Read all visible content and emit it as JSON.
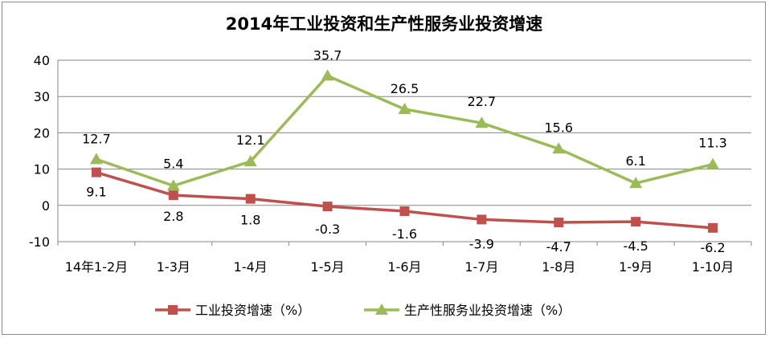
{
  "chart_data": {
    "type": "line",
    "title": "2014年工业投资和生产性服务业投资增速",
    "categories": [
      "14年1-2月",
      "1-3月",
      "1-4月",
      "1-5月",
      "1-6月",
      "1-7月",
      "1-8月",
      "1-9月",
      "1-10月"
    ],
    "ylim": [
      -10,
      40
    ],
    "yticks": [
      -10,
      0,
      10,
      20,
      30,
      40
    ],
    "grid": true,
    "legend_position": "bottom",
    "series": [
      {
        "name": "工业投资增速（%）",
        "values": [
          9.1,
          2.8,
          1.8,
          -0.3,
          -1.6,
          -3.9,
          -4.7,
          -4.5,
          -6.2
        ],
        "labels": [
          "9.1",
          "2.8",
          "1.8",
          "-0.3",
          "-1.6",
          "-3.9",
          "-4.7",
          "-4.5",
          "-6.2"
        ],
        "color": "#c0504d",
        "marker": "square"
      },
      {
        "name": "生产性服务业投资增速（%）",
        "values": [
          12.7,
          5.4,
          12.1,
          35.7,
          26.5,
          22.7,
          15.6,
          6.1,
          11.3
        ],
        "labels": [
          "12.7",
          "5.4",
          "12.1",
          "35.7",
          "26.5",
          "22.7",
          "15.6",
          "6.1",
          "11.3"
        ],
        "color": "#9bbb59",
        "marker": "triangle"
      }
    ]
  }
}
